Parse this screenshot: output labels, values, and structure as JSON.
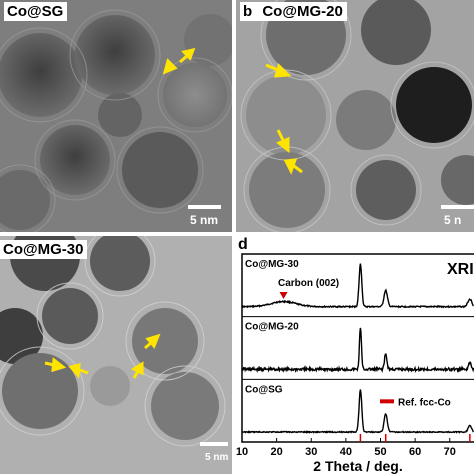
{
  "panels": {
    "a": {
      "title": "Co@SG",
      "scale": "5 nm"
    },
    "b": {
      "letter": "b",
      "title": "Co@MG-20",
      "scale": "5 n"
    },
    "c": {
      "title": "Co@MG-30",
      "scale": "5 nm"
    },
    "d": {
      "letter": "d",
      "tag": "XRI",
      "annotation": "Carbon (002)",
      "ref_legend": "Ref. fcc-Co"
    }
  },
  "colors": {
    "arrow": "#ffe400",
    "ref_line": "#d00000",
    "marker": "#cc0000"
  },
  "chart_data": {
    "type": "line",
    "xlabel": "2 Theta / deg.",
    "xlim": [
      10,
      77
    ],
    "xticks": [
      10,
      20,
      30,
      40,
      50,
      60,
      70
    ],
    "series": [
      {
        "name": "Co@MG-30",
        "peaks": [
          {
            "x": 22,
            "height": 0.12,
            "width": 5
          },
          {
            "x": 44.2,
            "height": 1.0,
            "width": 0.55
          },
          {
            "x": 51.5,
            "height": 0.38,
            "width": 0.7
          },
          {
            "x": 75.8,
            "height": 0.18,
            "width": 0.8
          }
        ]
      },
      {
        "name": "Co@MG-20",
        "peaks": [
          {
            "x": 44.2,
            "height": 1.0,
            "width": 0.4
          },
          {
            "x": 51.5,
            "height": 0.35,
            "width": 0.5
          },
          {
            "x": 75.8,
            "height": 0.15,
            "width": 0.6
          }
        ]
      },
      {
        "name": "Co@SG",
        "peaks": [
          {
            "x": 44.2,
            "height": 1.0,
            "width": 0.55
          },
          {
            "x": 51.5,
            "height": 0.42,
            "width": 0.65
          },
          {
            "x": 75.8,
            "height": 0.15,
            "width": 0.7
          }
        ]
      }
    ],
    "reference": {
      "name": "Ref. fcc-Co",
      "positions": [
        44.2,
        51.5,
        75.8
      ]
    }
  }
}
